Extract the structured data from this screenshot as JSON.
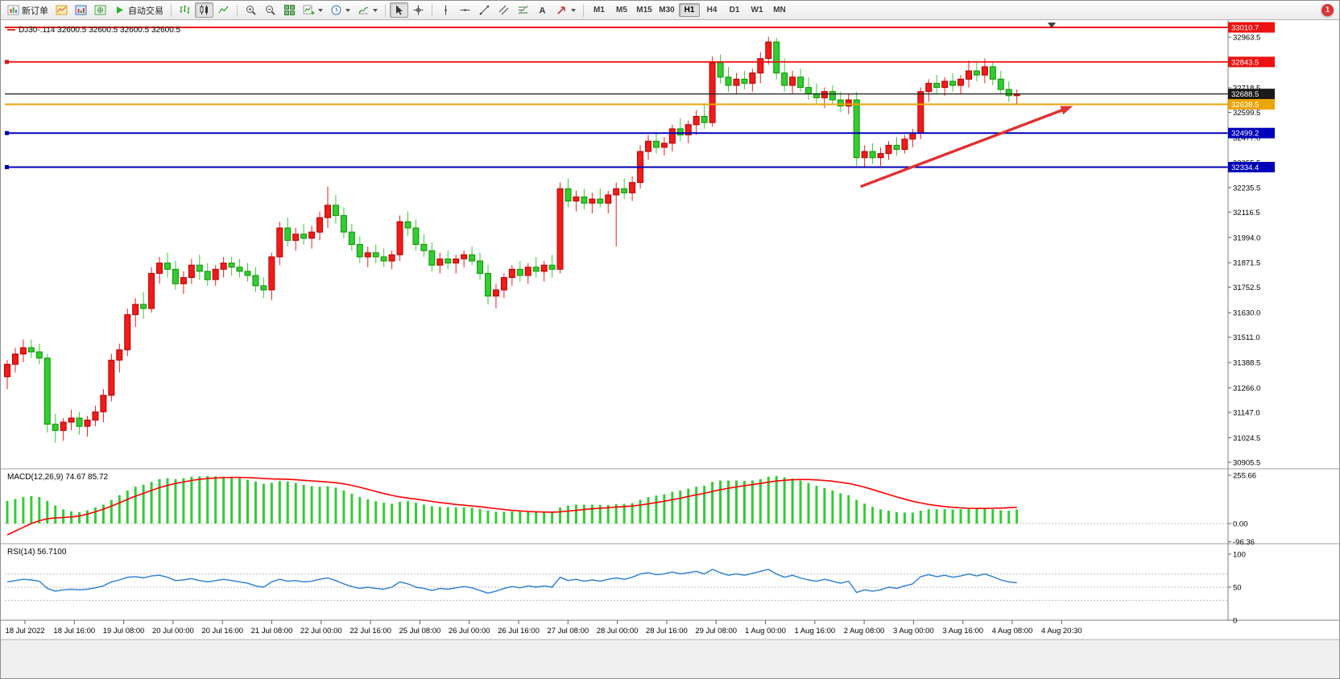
{
  "window": {
    "badge_count": "1"
  },
  "toolbar": {
    "new_order_label": "新订单",
    "auto_trading_label": "自动交易",
    "timeframes": [
      "M1",
      "M5",
      "M15",
      "M30",
      "H1",
      "H4",
      "D1",
      "W1",
      "MN"
    ],
    "active_timeframe": "H1",
    "icons": [
      "new-order-icon",
      "chart-windows-icon",
      "market-watch-icon",
      "navigator-icon",
      "auto-trading-icon",
      "bar-chart-icon",
      "candlestick-chart-icon",
      "line-chart-icon",
      "zoom-in-icon",
      "zoom-out-icon",
      "tile-windows-icon",
      "new-chart-icon",
      "periodicity-icon",
      "indicators-icon",
      "cursor-icon",
      "crosshair-icon",
      "vertical-line-icon",
      "horizontal-line-icon",
      "trendline-icon",
      "channel-icon",
      "fibonacci-icon",
      "text-label-icon",
      "arrow-tool-icon"
    ]
  },
  "chart_data": {
    "type": "candlestick",
    "symbol_info": "DJ30-.114 32600.5 32600.5 32600.5 32600.5",
    "up_color": "#f21b1b",
    "down_color": "#33cc33",
    "price_axis": {
      "max": 33010.7,
      "min": 30905.5,
      "plain_ticks": [
        32963.5,
        32718.5,
        32599.5,
        32477.0,
        32355.5,
        32235.5,
        32116.5,
        31994.0,
        31871.5,
        31752.5,
        31630.0,
        31511.0,
        31388.5,
        31266.0,
        31147.0,
        31024.5,
        30905.5
      ]
    },
    "hlines": [
      {
        "price": 33010.7,
        "label": "33010.7",
        "color": "#ee1111",
        "width": 2.0
      },
      {
        "price": 32843.5,
        "label": "32843.5",
        "color": "#ee1111",
        "width": 1.8,
        "handle": true
      },
      {
        "price": 32688.5,
        "label": "32688.5",
        "color": "#1a1a1a",
        "width": 1.2
      },
      {
        "price": 32638.5,
        "label": "32638.5",
        "color": "#eda405",
        "width": 2.0
      },
      {
        "price": 32499.2,
        "label": "32499.2",
        "color": "#0000bb",
        "width": 2.0,
        "handle": true
      },
      {
        "price": 32334.4,
        "label": "32334.4",
        "color": "#0000bb",
        "width": 2.0,
        "handle": true
      }
    ],
    "arrow": {
      "from_index": 106.5,
      "from_price": 32240,
      "to_index": 133,
      "to_price": 32630,
      "color": "#e03030"
    },
    "candles": [
      [
        31320,
        31400,
        31260,
        31380
      ],
      [
        31380,
        31460,
        31340,
        31430
      ],
      [
        31430,
        31500,
        31390,
        31460
      ],
      [
        31460,
        31500,
        31410,
        31440
      ],
      [
        31440,
        31480,
        31380,
        31410
      ],
      [
        31410,
        31430,
        31050,
        31090
      ],
      [
        31090,
        31140,
        31000,
        31060
      ],
      [
        31060,
        31120,
        31010,
        31100
      ],
      [
        31100,
        31160,
        31060,
        31120
      ],
      [
        31120,
        31150,
        31040,
        31080
      ],
      [
        31080,
        31130,
        31030,
        31110
      ],
      [
        31110,
        31180,
        31080,
        31150
      ],
      [
        31150,
        31260,
        31100,
        31230
      ],
      [
        31230,
        31430,
        31200,
        31400
      ],
      [
        31400,
        31480,
        31340,
        31450
      ],
      [
        31450,
        31650,
        31420,
        31620
      ],
      [
        31620,
        31700,
        31560,
        31670
      ],
      [
        31670,
        31730,
        31600,
        31650
      ],
      [
        31650,
        31850,
        31630,
        31820
      ],
      [
        31820,
        31900,
        31770,
        31870
      ],
      [
        31870,
        31920,
        31800,
        31840
      ],
      [
        31840,
        31880,
        31740,
        31770
      ],
      [
        31770,
        31830,
        31720,
        31800
      ],
      [
        31800,
        31890,
        31770,
        31860
      ],
      [
        31860,
        31910,
        31790,
        31830
      ],
      [
        31830,
        31870,
        31760,
        31790
      ],
      [
        31790,
        31860,
        31760,
        31840
      ],
      [
        31840,
        31900,
        31800,
        31870
      ],
      [
        31870,
        31900,
        31810,
        31850
      ],
      [
        31850,
        31890,
        31800,
        31830
      ],
      [
        31830,
        31870,
        31780,
        31810
      ],
      [
        31810,
        31850,
        31730,
        31760
      ],
      [
        31760,
        31800,
        31700,
        31740
      ],
      [
        31740,
        31920,
        31690,
        31900
      ],
      [
        31900,
        32070,
        31860,
        32040
      ],
      [
        32040,
        32090,
        31950,
        31980
      ],
      [
        31980,
        32040,
        31930,
        32010
      ],
      [
        32010,
        32060,
        31960,
        31990
      ],
      [
        31990,
        32050,
        31940,
        32020
      ],
      [
        32020,
        32120,
        31980,
        32090
      ],
      [
        32090,
        32240,
        32040,
        32150
      ],
      [
        32150,
        32200,
        32060,
        32100
      ],
      [
        32100,
        32140,
        31990,
        32020
      ],
      [
        32020,
        32060,
        31930,
        31960
      ],
      [
        31960,
        32000,
        31870,
        31900
      ],
      [
        31900,
        31950,
        31850,
        31920
      ],
      [
        31920,
        31960,
        31870,
        31900
      ],
      [
        31900,
        31940,
        31850,
        31880
      ],
      [
        31880,
        31930,
        31840,
        31910
      ],
      [
        31910,
        32100,
        31880,
        32070
      ],
      [
        32070,
        32120,
        32000,
        32040
      ],
      [
        32040,
        32080,
        31930,
        31960
      ],
      [
        31960,
        32010,
        31900,
        31930
      ],
      [
        31930,
        31970,
        31830,
        31860
      ],
      [
        31860,
        31920,
        31820,
        31890
      ],
      [
        31890,
        31930,
        31840,
        31870
      ],
      [
        31870,
        31910,
        31820,
        31890
      ],
      [
        31890,
        31930,
        31850,
        31910
      ],
      [
        31910,
        31950,
        31860,
        31880
      ],
      [
        31880,
        31920,
        31790,
        31820
      ],
      [
        31820,
        31860,
        31670,
        31710
      ],
      [
        31710,
        31770,
        31650,
        31740
      ],
      [
        31740,
        31820,
        31700,
        31800
      ],
      [
        31800,
        31860,
        31760,
        31840
      ],
      [
        31840,
        31880,
        31780,
        31810
      ],
      [
        31810,
        31870,
        31770,
        31850
      ],
      [
        31850,
        31900,
        31800,
        31830
      ],
      [
        31830,
        31880,
        31780,
        31860
      ],
      [
        31860,
        31910,
        31800,
        31840
      ],
      [
        31840,
        32260,
        31820,
        32230
      ],
      [
        32230,
        32280,
        32140,
        32170
      ],
      [
        32170,
        32220,
        32120,
        32190
      ],
      [
        32190,
        32230,
        32130,
        32160
      ],
      [
        32160,
        32210,
        32110,
        32180
      ],
      [
        32180,
        32230,
        32140,
        32160
      ],
      [
        32160,
        32220,
        32110,
        32200
      ],
      [
        32200,
        32260,
        31950,
        32230
      ],
      [
        32230,
        32280,
        32180,
        32210
      ],
      [
        32210,
        32290,
        32170,
        32260
      ],
      [
        32260,
        32440,
        32230,
        32410
      ],
      [
        32410,
        32490,
        32370,
        32460
      ],
      [
        32460,
        32500,
        32400,
        32430
      ],
      [
        32430,
        32480,
        32390,
        32450
      ],
      [
        32450,
        32540,
        32410,
        32520
      ],
      [
        32520,
        32570,
        32460,
        32490
      ],
      [
        32490,
        32560,
        32450,
        32540
      ],
      [
        32540,
        32610,
        32490,
        32580
      ],
      [
        32580,
        32640,
        32520,
        32550
      ],
      [
        32550,
        32870,
        32530,
        32840
      ],
      [
        32840,
        32880,
        32740,
        32770
      ],
      [
        32770,
        32820,
        32700,
        32730
      ],
      [
        32730,
        32790,
        32690,
        32760
      ],
      [
        32760,
        32800,
        32710,
        32740
      ],
      [
        32740,
        32810,
        32700,
        32790
      ],
      [
        32790,
        32890,
        32740,
        32860
      ],
      [
        32860,
        32965,
        32830,
        32940
      ],
      [
        32940,
        32960,
        32760,
        32790
      ],
      [
        32790,
        32860,
        32700,
        32730
      ],
      [
        32730,
        32800,
        32690,
        32770
      ],
      [
        32770,
        32810,
        32700,
        32720
      ],
      [
        32720,
        32770,
        32660,
        32690
      ],
      [
        32690,
        32740,
        32640,
        32670
      ],
      [
        32670,
        32720,
        32620,
        32700
      ],
      [
        32700,
        32730,
        32640,
        32660
      ],
      [
        32660,
        32700,
        32600,
        32630
      ],
      [
        32630,
        32690,
        32590,
        32660
      ],
      [
        32660,
        32700,
        32340,
        32380
      ],
      [
        32380,
        32440,
        32330,
        32410
      ],
      [
        32410,
        32450,
        32350,
        32380
      ],
      [
        32380,
        32430,
        32340,
        32400
      ],
      [
        32400,
        32460,
        32370,
        32440
      ],
      [
        32440,
        32480,
        32390,
        32420
      ],
      [
        32420,
        32490,
        32400,
        32470
      ],
      [
        32470,
        32520,
        32430,
        32500
      ],
      [
        32500,
        32720,
        32470,
        32700
      ],
      [
        32700,
        32760,
        32650,
        32740
      ],
      [
        32740,
        32780,
        32690,
        32720
      ],
      [
        32720,
        32770,
        32680,
        32750
      ],
      [
        32750,
        32790,
        32700,
        32730
      ],
      [
        32730,
        32780,
        32690,
        32760
      ],
      [
        32760,
        32850,
        32720,
        32800
      ],
      [
        32800,
        32840,
        32750,
        32780
      ],
      [
        32780,
        32860,
        32740,
        32820
      ],
      [
        32820,
        32840,
        32730,
        32760
      ],
      [
        32760,
        32800,
        32690,
        32710
      ],
      [
        32710,
        32750,
        32650,
        32680
      ],
      [
        32680,
        32710,
        32640,
        32688.5
      ]
    ],
    "macd": {
      "label": "MACD(12,26,9) 74.67 85.72",
      "hist_color": "#33cc33",
      "signal_color": "#ff0000",
      "ticks": [
        {
          "v": 255.66,
          "t": "255.66"
        },
        {
          "v": 0,
          "t": "0.00"
        },
        {
          "v": -96.36,
          "t": "-96.36"
        }
      ],
      "hist": [
        120,
        130,
        140,
        145,
        140,
        120,
        95,
        75,
        65,
        60,
        70,
        85,
        100,
        125,
        150,
        175,
        195,
        205,
        220,
        235,
        240,
        235,
        240,
        248,
        250,
        252,
        250,
        248,
        245,
        240,
        232,
        222,
        210,
        215,
        225,
        222,
        215,
        205,
        198,
        195,
        198,
        190,
        175,
        158,
        140,
        128,
        118,
        110,
        105,
        115,
        118,
        110,
        100,
        92,
        88,
        86,
        85,
        86,
        84,
        78,
        68,
        62,
        62,
        64,
        63,
        64,
        63,
        64,
        62,
        85,
        95,
        100,
        100,
        100,
        98,
        98,
        102,
        104,
        108,
        125,
        140,
        148,
        155,
        168,
        175,
        185,
        195,
        200,
        220,
        228,
        228,
        228,
        226,
        228,
        235,
        248,
        252,
        245,
        238,
        228,
        215,
        200,
        188,
        175,
        160,
        150,
        125,
        105,
        88,
        75,
        68,
        60,
        58,
        58,
        68,
        75,
        75,
        76,
        74,
        76,
        80,
        78,
        80,
        76,
        70,
        68,
        74.67
      ],
      "signal": [
        -60,
        -40,
        -20,
        0,
        15,
        25,
        30,
        32,
        35,
        40,
        50,
        62,
        76,
        92,
        110,
        128,
        145,
        160,
        175,
        190,
        202,
        212,
        220,
        228,
        234,
        238,
        241,
        243,
        244,
        244,
        243,
        241,
        238,
        236,
        235,
        234,
        232,
        229,
        226,
        223,
        220,
        216,
        210,
        202,
        192,
        181,
        170,
        159,
        149,
        141,
        135,
        129,
        123,
        117,
        111,
        106,
        101,
        97,
        93,
        89,
        84,
        79,
        74,
        70,
        67,
        64,
        62,
        61,
        60,
        62,
        66,
        70,
        74,
        78,
        81,
        84,
        87,
        90,
        93,
        98,
        104,
        111,
        118,
        126,
        134,
        143,
        152,
        160,
        170,
        179,
        187,
        194,
        200,
        206,
        212,
        219,
        225,
        229,
        232,
        233,
        233,
        231,
        228,
        224,
        218,
        212,
        203,
        192,
        180,
        167,
        154,
        141,
        129,
        118,
        109,
        101,
        95,
        90,
        86,
        83,
        81,
        80,
        80,
        81,
        82,
        84,
        85.72
      ]
    },
    "rsi": {
      "label": "RSI(14) 56.7100",
      "line_color": "#2a7fd4",
      "ticks": [
        {
          "v": 100,
          "t": "100"
        },
        {
          "v": 50,
          "t": "50"
        },
        {
          "v": 0,
          "t": "0"
        }
      ],
      "levels": [
        70,
        50,
        30
      ],
      "values": [
        58,
        60,
        62,
        61,
        59,
        48,
        44,
        46,
        47,
        46,
        47,
        49,
        52,
        58,
        61,
        65,
        66,
        64,
        67,
        68,
        65,
        60,
        61,
        63,
        60,
        58,
        60,
        62,
        60,
        58,
        56,
        52,
        50,
        58,
        62,
        59,
        60,
        58,
        59,
        62,
        64,
        60,
        55,
        51,
        48,
        50,
        48,
        47,
        50,
        58,
        55,
        50,
        48,
        45,
        48,
        47,
        49,
        51,
        49,
        45,
        41,
        44,
        48,
        51,
        49,
        52,
        50,
        52,
        50,
        65,
        60,
        62,
        59,
        61,
        59,
        62,
        64,
        62,
        65,
        70,
        72,
        69,
        70,
        73,
        70,
        72,
        74,
        70,
        77,
        72,
        68,
        70,
        68,
        71,
        74,
        77,
        70,
        65,
        68,
        64,
        61,
        59,
        62,
        59,
        56,
        59,
        42,
        46,
        44,
        46,
        50,
        48,
        52,
        55,
        66,
        69,
        66,
        68,
        65,
        67,
        70,
        67,
        70,
        66,
        61,
        58,
        56.71
      ]
    },
    "time_labels": [
      "18 Jul 2022",
      "18 Jul 16:00",
      "19 Jul 08:00",
      "20 Jul 00:00",
      "20 Jul 16:00",
      "21 Jul 08:00",
      "22 Jul 00:00",
      "22 Jul 16:00",
      "25 Jul 08:00",
      "26 Jul 00:00",
      "26 Jul 16:00",
      "27 Jul 08:00",
      "28 Jul 00:00",
      "28 Jul 16:00",
      "29 Jul 08:00",
      "1 Aug 00:00",
      "1 Aug 16:00",
      "2 Aug 08:00",
      "3 Aug 00:00",
      "3 Aug 16:00",
      "4 Aug 08:00",
      "4 Aug 20:30"
    ]
  }
}
